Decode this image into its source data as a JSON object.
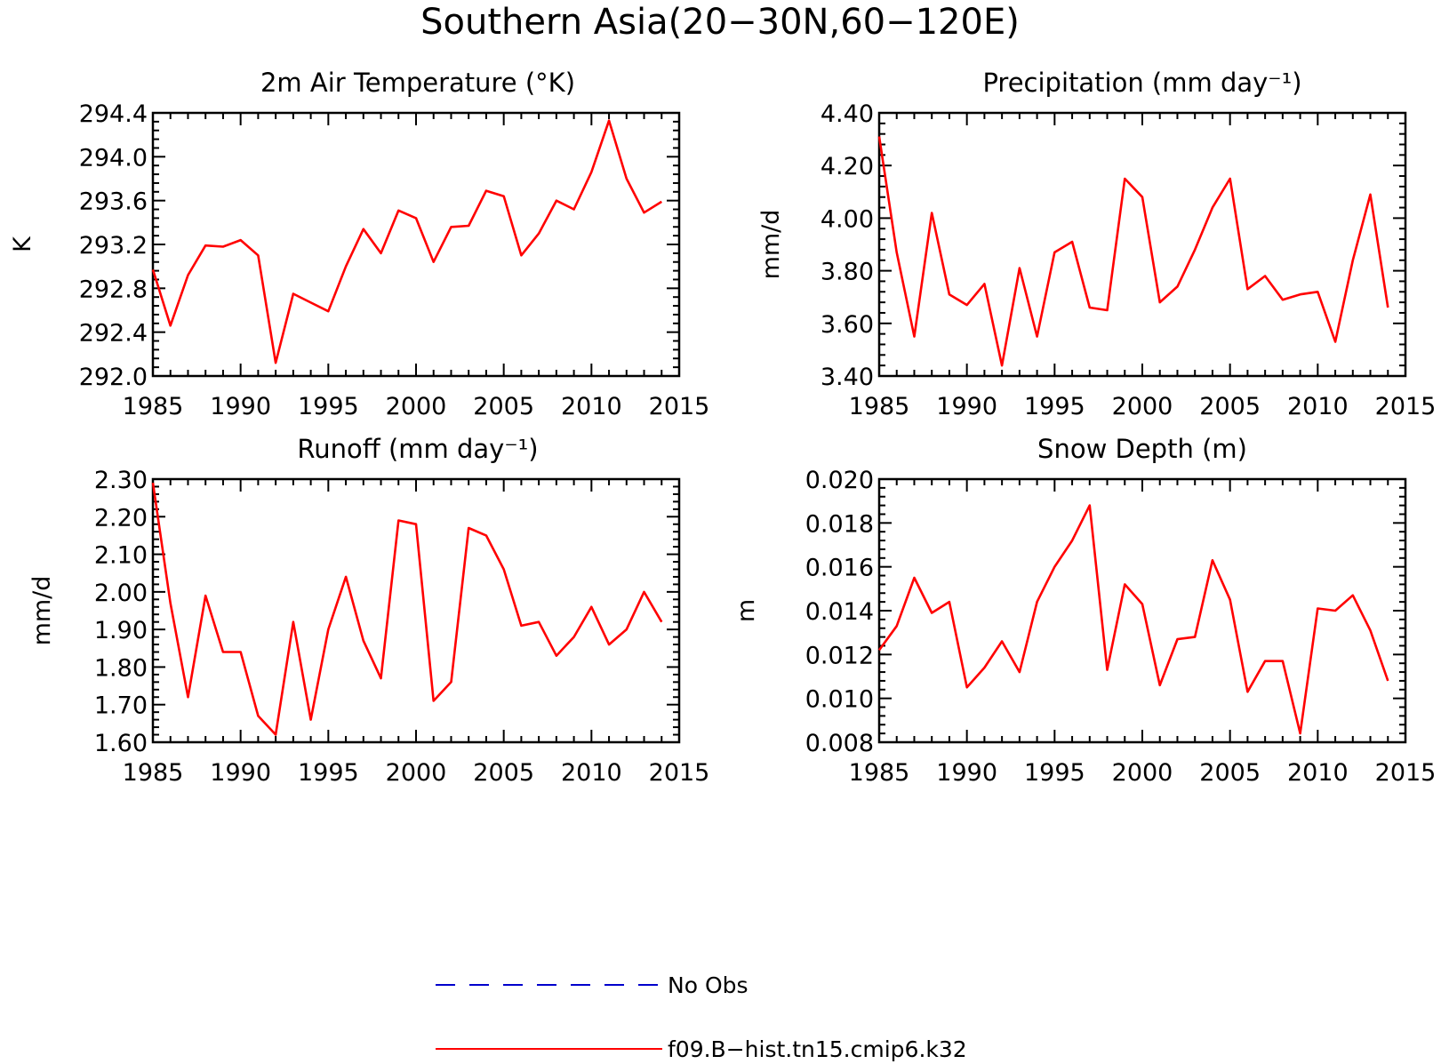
{
  "figure": {
    "title": "Southern Asia(20−30N,60−120E)"
  },
  "legend": {
    "items": [
      {
        "label": "No Obs",
        "color": "#0000cc",
        "style": "dashed"
      },
      {
        "label": "f09.B−hist.tn15.cmip6.k32",
        "color": "#ff0000",
        "style": "solid"
      }
    ]
  },
  "chart_data": [
    {
      "type": "line",
      "title": "2m Air Temperature (°K)",
      "ylabel": "K",
      "xlim": [
        1985,
        2015
      ],
      "ylim": [
        292.0,
        294.4
      ],
      "xticks": [
        1985,
        1990,
        1995,
        2000,
        2005,
        2010,
        2015
      ],
      "xtick_labels": [
        "1985",
        "1990",
        "1995",
        "2000",
        "2005",
        "2010",
        "2015"
      ],
      "yticks": [
        292.0,
        292.4,
        292.8,
        293.2,
        293.6,
        294.0,
        294.4
      ],
      "ytick_labels": [
        "292.0",
        "292.4",
        "292.8",
        "293.2",
        "293.6",
        "294.0",
        "294.4"
      ],
      "grid": false,
      "series": [
        {
          "color": "#ff0000",
          "x": [
            1985,
            1986,
            1987,
            1988,
            1989,
            1990,
            1991,
            1992,
            1993,
            1994,
            1995,
            1996,
            1997,
            1998,
            1999,
            2000,
            2001,
            2002,
            2003,
            2004,
            2005,
            2006,
            2007,
            2008,
            2009,
            2010,
            2011,
            2012,
            2013,
            2014
          ],
          "y": [
            292.97,
            292.46,
            292.92,
            293.19,
            293.18,
            293.24,
            293.1,
            292.12,
            292.75,
            292.67,
            292.59,
            293.0,
            293.34,
            293.12,
            293.51,
            293.44,
            293.04,
            293.36,
            293.37,
            293.69,
            293.64,
            293.1,
            293.3,
            293.6,
            293.52,
            293.86,
            294.33,
            293.8,
            293.49,
            293.59
          ]
        }
      ]
    },
    {
      "type": "line",
      "title": "Precipitation (mm day⁻¹)",
      "ylabel": "mm/d",
      "xlim": [
        1985,
        2015
      ],
      "ylim": [
        3.4,
        4.4
      ],
      "xticks": [
        1985,
        1990,
        1995,
        2000,
        2005,
        2010,
        2015
      ],
      "xtick_labels": [
        "1985",
        "1990",
        "1995",
        "2000",
        "2005",
        "2010",
        "2015"
      ],
      "yticks": [
        3.4,
        3.6,
        3.8,
        4.0,
        4.2,
        4.4
      ],
      "ytick_labels": [
        "3.40",
        "3.60",
        "3.80",
        "4.00",
        "4.20",
        "4.40"
      ],
      "grid": false,
      "series": [
        {
          "color": "#ff0000",
          "x": [
            1985,
            1986,
            1987,
            1988,
            1989,
            1990,
            1991,
            1992,
            1993,
            1994,
            1995,
            1996,
            1997,
            1998,
            1999,
            2000,
            2001,
            2002,
            2003,
            2004,
            2005,
            2006,
            2007,
            2008,
            2009,
            2010,
            2011,
            2012,
            2013,
            2014
          ],
          "y": [
            4.31,
            3.87,
            3.55,
            4.02,
            3.71,
            3.67,
            3.75,
            3.44,
            3.81,
            3.55,
            3.87,
            3.91,
            3.66,
            3.65,
            4.15,
            4.08,
            3.68,
            3.74,
            3.88,
            4.04,
            4.15,
            3.73,
            3.78,
            3.69,
            3.71,
            3.72,
            3.53,
            3.84,
            4.09,
            3.66
          ]
        }
      ]
    },
    {
      "type": "line",
      "title": "Runoff (mm day⁻¹)",
      "ylabel": "mm/d",
      "xlim": [
        1985,
        2015
      ],
      "ylim": [
        1.6,
        2.3
      ],
      "xticks": [
        1985,
        1990,
        1995,
        2000,
        2005,
        2010,
        2015
      ],
      "xtick_labels": [
        "1985",
        "1990",
        "1995",
        "2000",
        "2005",
        "2010",
        "2015"
      ],
      "yticks": [
        1.6,
        1.7,
        1.8,
        1.9,
        2.0,
        2.1,
        2.2,
        2.3
      ],
      "ytick_labels": [
        "1.60",
        "1.70",
        "1.80",
        "1.90",
        "2.00",
        "2.10",
        "2.20",
        "2.30"
      ],
      "grid": false,
      "series": [
        {
          "color": "#ff0000",
          "x": [
            1985,
            1986,
            1987,
            1988,
            1989,
            1990,
            1991,
            1992,
            1993,
            1994,
            1995,
            1996,
            1997,
            1998,
            1999,
            2000,
            2001,
            2002,
            2003,
            2004,
            2005,
            2006,
            2007,
            2008,
            2009,
            2010,
            2011,
            2012,
            2013,
            2014
          ],
          "y": [
            2.29,
            1.97,
            1.72,
            1.99,
            1.84,
            1.84,
            1.67,
            1.62,
            1.92,
            1.66,
            1.9,
            2.04,
            1.87,
            1.77,
            2.19,
            2.18,
            1.71,
            1.76,
            2.17,
            2.15,
            2.06,
            1.91,
            1.92,
            1.83,
            1.88,
            1.96,
            1.86,
            1.9,
            2.0,
            1.92
          ]
        }
      ]
    },
    {
      "type": "line",
      "title": "Snow Depth (m)",
      "ylabel": "m",
      "xlim": [
        1985,
        2015
      ],
      "ylim": [
        0.008,
        0.02
      ],
      "xticks": [
        1985,
        1990,
        1995,
        2000,
        2005,
        2010,
        2015
      ],
      "xtick_labels": [
        "1985",
        "1990",
        "1995",
        "2000",
        "2005",
        "2010",
        "2015"
      ],
      "yticks": [
        0.008,
        0.01,
        0.012,
        0.014,
        0.016,
        0.018,
        0.02
      ],
      "ytick_labels": [
        "0.008",
        "0.010",
        "0.012",
        "0.014",
        "0.016",
        "0.018",
        "0.020"
      ],
      "grid": false,
      "series": [
        {
          "color": "#ff0000",
          "x": [
            1985,
            1986,
            1987,
            1988,
            1989,
            1990,
            1991,
            1992,
            1993,
            1994,
            1995,
            1996,
            1997,
            1998,
            1999,
            2000,
            2001,
            2002,
            2003,
            2004,
            2005,
            2006,
            2007,
            2008,
            2009,
            2010,
            2011,
            2012,
            2013,
            2014
          ],
          "y": [
            0.0122,
            0.0133,
            0.0155,
            0.0139,
            0.0144,
            0.0105,
            0.0114,
            0.0126,
            0.0112,
            0.0144,
            0.016,
            0.0172,
            0.0188,
            0.0113,
            0.0152,
            0.0143,
            0.0106,
            0.0127,
            0.0128,
            0.0163,
            0.0145,
            0.0103,
            0.0117,
            0.0117,
            0.0084,
            0.0141,
            0.014,
            0.0147,
            0.0131,
            0.0108
          ]
        }
      ]
    }
  ]
}
